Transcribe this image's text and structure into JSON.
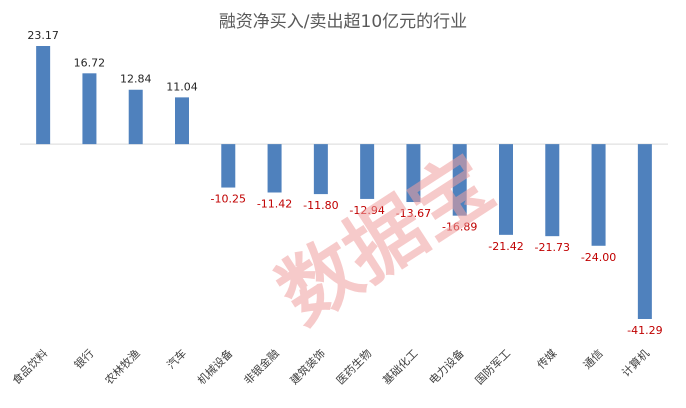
{
  "chart_data": {
    "type": "bar",
    "title": "融资净买入/卖出超10亿元的行业",
    "categories": [
      "食品饮料",
      "银行",
      "农林牧渔",
      "汽车",
      "机械设备",
      "非银金融",
      "建筑装饰",
      "医药生物",
      "基础化工",
      "电力设备",
      "国防军工",
      "传媒",
      "通信",
      "计算机"
    ],
    "values": [
      23.17,
      16.72,
      12.84,
      11.04,
      -10.25,
      -11.42,
      -11.8,
      -12.94,
      -13.67,
      -16.89,
      -21.42,
      -21.73,
      -24.0,
      -41.29
    ],
    "value_labels": [
      "23.17",
      "16.72",
      "12.84",
      "11.04",
      "-10.25",
      "-11.42",
      "-11.80",
      "-12.94",
      "-13.67",
      "-16.89",
      "-21.42",
      "-21.73",
      "-24.00",
      "-41.29"
    ],
    "xlabel": "",
    "ylabel": "",
    "ylim": [
      -41.29,
      23.17
    ],
    "grid": false,
    "legend": "none",
    "colors": {
      "bar": "#4f81bd",
      "positive_label": "#262626",
      "negative_label": "#c00000",
      "axis": "#d9d9d9"
    }
  },
  "watermark": {
    "text": "数据宝"
  }
}
